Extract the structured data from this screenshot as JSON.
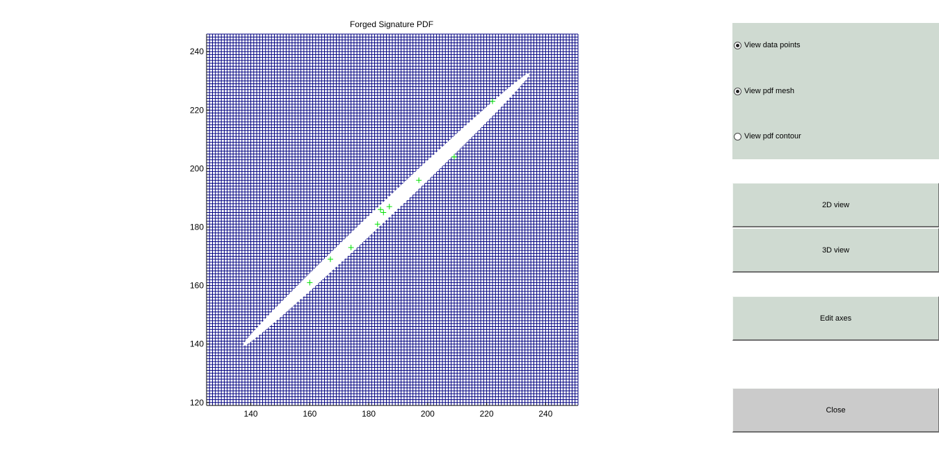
{
  "chart_data": {
    "type": "scatter",
    "title": "Forged Signature PDF",
    "xlabel": "",
    "ylabel": "",
    "xlim": [
      125,
      251
    ],
    "ylim": [
      119,
      246
    ],
    "xticks": [
      140,
      160,
      180,
      200,
      220,
      240
    ],
    "yticks": [
      120,
      140,
      160,
      180,
      200,
      220,
      240
    ],
    "mesh_color": "#000080",
    "marker_color": "#00e000",
    "series": [
      {
        "marker": "+",
        "x": [
          160,
          167,
          174,
          183,
          184,
          185,
          187,
          197,
          209,
          222
        ],
        "y": [
          161,
          169,
          173,
          181,
          186,
          185,
          187,
          196,
          204,
          223
        ]
      }
    ],
    "region": {
      "start": [
        137,
        139
      ],
      "end": [
        235,
        233
      ],
      "half_width": 2.6
    }
  },
  "options": [
    {
      "label": "View data points",
      "checked": true
    },
    {
      "label": "View pdf mesh",
      "checked": true
    },
    {
      "label": "View pdf contour",
      "checked": false
    }
  ],
  "buttons": {
    "view2d": "2D view",
    "view3d": "3D view",
    "edit_axes": "Edit axes",
    "close": "Close"
  }
}
